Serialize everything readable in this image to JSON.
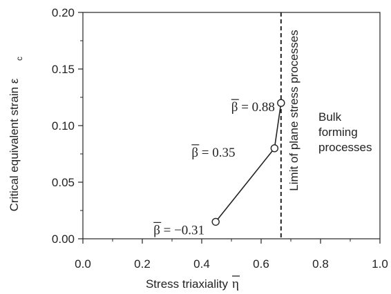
{
  "chart_data": {
    "type": "line",
    "xlabel": "Stress triaxiality",
    "xlabel_symbol": "η",
    "ylabel": "Critical equivalent strain ε",
    "ylabel_subscript": "c",
    "xlim": [
      0.0,
      1.0
    ],
    "ylim": [
      0.0,
      0.2
    ],
    "xticks": [
      "0.0",
      "0.2",
      "0.4",
      "0.6",
      "0.8",
      "1.0"
    ],
    "yticks": [
      "0.00",
      "0.05",
      "0.10",
      "0.15",
      "0.20"
    ],
    "grid": false,
    "series": [
      {
        "x": [
          0.447,
          0.645,
          0.667
        ],
        "y": [
          0.015,
          0.08,
          0.12
        ],
        "point_labels": [
          "β = −0.31",
          "β = 0.35",
          "β = 0.88"
        ]
      }
    ],
    "vertical_line": {
      "x": 0.667,
      "style": "dashed",
      "label": "Limit of plane stress processes"
    },
    "region_label": [
      "Bulk",
      "forming",
      "processes"
    ]
  }
}
